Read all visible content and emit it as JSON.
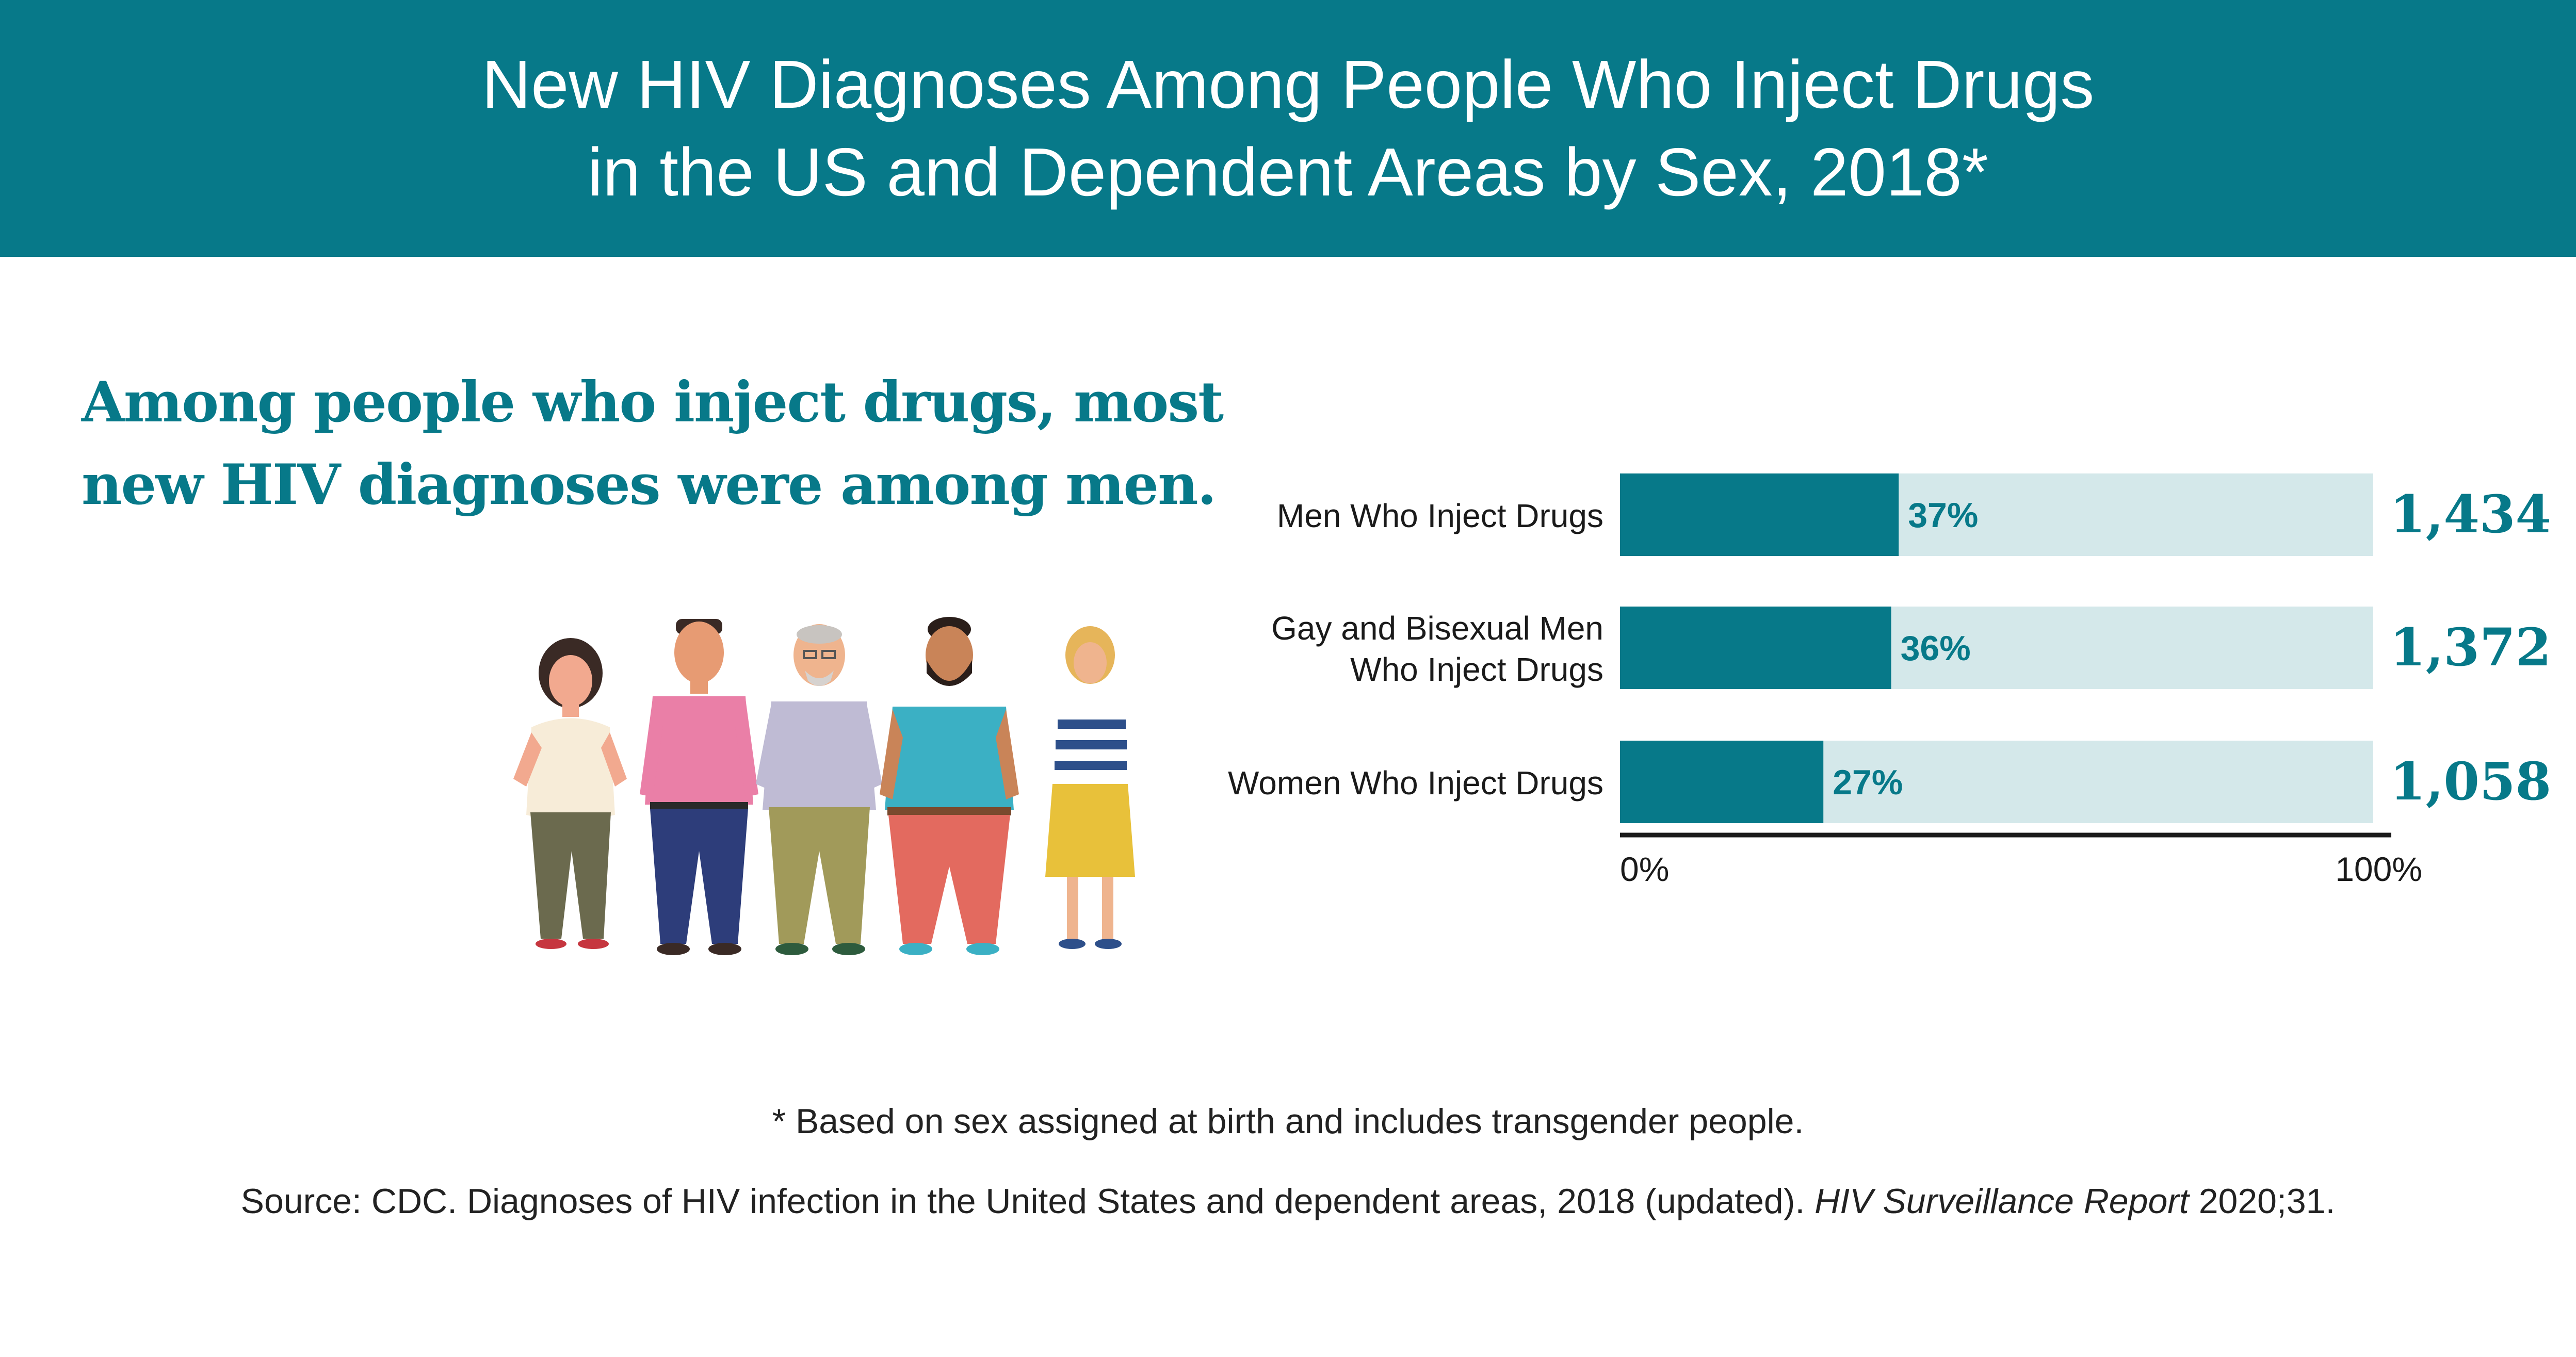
{
  "header": {
    "title_line1": "New HIV Diagnoses Among People Who Inject Drugs",
    "title_line2": "in the US and Dependent Areas by Sex, 2018*"
  },
  "headline": {
    "line1": "Among people who inject drugs, most",
    "line2": "new HIV diagnoses were among men."
  },
  "colors": {
    "brand_teal": "#077989",
    "bar_background": "#d4e8ea",
    "axis": "#1a1a1a"
  },
  "illustration": {
    "icon": "group-of-five-people-illustration"
  },
  "chart_data": {
    "type": "bar",
    "orientation": "horizontal",
    "stacked_percent": true,
    "categories": [
      "Men Who Inject Drugs",
      "Gay and Bisexual Men Who Inject Drugs",
      "Women Who Inject Drugs"
    ],
    "category_label_lines": [
      [
        "Men Who Inject Drugs"
      ],
      [
        "Gay and Bisexual Men",
        "Who Inject Drugs"
      ],
      [
        "Women Who Inject Drugs"
      ]
    ],
    "values": [
      37,
      36,
      27
    ],
    "value_labels": [
      "37%",
      "36%",
      "27%"
    ],
    "counts": [
      "1,434",
      "1,372",
      "1,058"
    ],
    "xlim": [
      0,
      100
    ],
    "x_tick_labels": [
      "0%",
      "100%"
    ],
    "grid": false
  },
  "footnote": "* Based on sex assigned at birth and includes transgender people.",
  "source": {
    "prefix": "Source: CDC. Diagnoses of HIV infection in the United States and dependent areas, 2018 (updated). ",
    "italic": "HIV Surveillance Report",
    "suffix": " 2020;31."
  }
}
